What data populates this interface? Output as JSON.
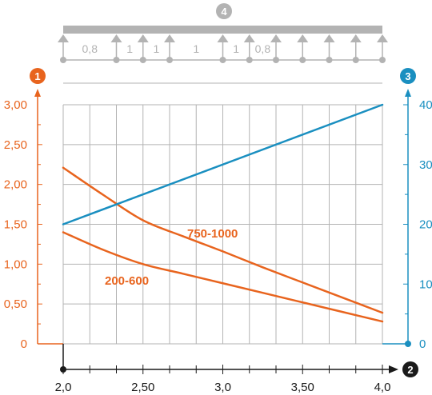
{
  "colors": {
    "left_axis": "#e8641e",
    "right_axis": "#1a8fc0",
    "x_axis": "#1a1a1a",
    "grid": "#b3b3b3",
    "beam": "#b3b3b3",
    "beam_text": "#b3b3b3",
    "series_orange": "#e8641e",
    "series_blue": "#1a8fc0"
  },
  "chart_data": {
    "type": "line",
    "markers": {
      "left_axis": "1",
      "x_axis": "2",
      "right_axis": "3",
      "beam": "4"
    },
    "x_ticks": [
      {
        "value": 2.0,
        "label": "2,0"
      },
      {
        "value": 2.5,
        "label": "2,50"
      },
      {
        "value": 3.0,
        "label": "3,0"
      },
      {
        "value": 3.5,
        "label": "3,50"
      },
      {
        "value": 4.0,
        "label": "4,0"
      }
    ],
    "x_range": [
      2.0,
      4.0
    ],
    "x_minor_step": 0.1667,
    "y_left_ticks": [
      {
        "value": 0,
        "label": "0"
      },
      {
        "value": 0.5,
        "label": "0,50"
      },
      {
        "value": 1.0,
        "label": "1,00"
      },
      {
        "value": 1.5,
        "label": "1,50"
      },
      {
        "value": 2.0,
        "label": "2,00"
      },
      {
        "value": 2.5,
        "label": "2,50"
      },
      {
        "value": 3.0,
        "label": "3,00"
      }
    ],
    "y_left_range": [
      0,
      3.0
    ],
    "y_right_ticks": [
      {
        "value": 0,
        "label": "0"
      },
      {
        "value": 10,
        "label": "10"
      },
      {
        "value": 20,
        "label": "20"
      },
      {
        "value": 30,
        "label": "30"
      },
      {
        "value": 40,
        "label": "40"
      }
    ],
    "y_right_range": [
      0,
      40
    ],
    "grid": true,
    "beam_spans": [
      "0,8",
      "1",
      "1",
      "1",
      "1",
      "0,8"
    ],
    "series": [
      {
        "name": "750-1000",
        "axis": "left",
        "x": [
          2.0,
          2.25,
          2.5,
          2.75,
          3.0,
          3.25,
          3.5,
          3.75,
          4.0
        ],
        "y": [
          2.21,
          1.87,
          1.55,
          1.35,
          1.16,
          0.96,
          0.77,
          0.58,
          0.39
        ]
      },
      {
        "name": "200-600",
        "axis": "left",
        "x": [
          2.0,
          2.25,
          2.5,
          2.75,
          3.0,
          3.25,
          3.5,
          3.75,
          4.0
        ],
        "y": [
          1.4,
          1.18,
          1.0,
          0.88,
          0.76,
          0.64,
          0.52,
          0.4,
          0.28
        ]
      },
      {
        "name": "",
        "axis": "right",
        "x": [
          2.0,
          4.0
        ],
        "y": [
          20,
          40
        ]
      }
    ]
  }
}
